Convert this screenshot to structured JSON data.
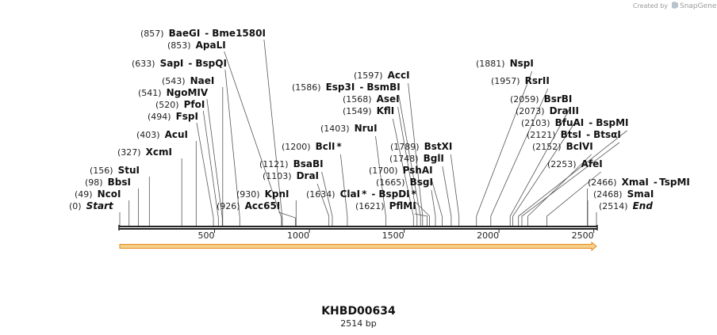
{
  "credit": {
    "prefix": "Created by",
    "brand": "SnapGene"
  },
  "sequence": {
    "name": "KHBD00634",
    "length_label": "2514 bp",
    "length": 2514
  },
  "colors": {
    "feature_fill": "#f6d08a",
    "feature_stroke": "#e48a1f",
    "backbone": "#222222"
  },
  "ticks": [
    {
      "value": 500,
      "label": "500"
    },
    {
      "value": 1000,
      "label": "1000"
    },
    {
      "value": 1500,
      "label": "1500"
    },
    {
      "value": 2000,
      "label": "2000"
    },
    {
      "value": 2500,
      "label": "2500"
    }
  ],
  "sites": [
    {
      "pos": 857,
      "pos_label": "(857)",
      "name": "BaeGI",
      "name2": "Bme1580I"
    },
    {
      "pos": 853,
      "pos_label": "(853)",
      "name": "ApaLI"
    },
    {
      "pos": 633,
      "pos_label": "(633)",
      "name": "SapI",
      "name2": "BspQI"
    },
    {
      "pos": 543,
      "pos_label": "(543)",
      "name": "NaeI"
    },
    {
      "pos": 541,
      "pos_label": "(541)",
      "name": "NgoMIV"
    },
    {
      "pos": 520,
      "pos_label": "(520)",
      "name": "PfoI"
    },
    {
      "pos": 494,
      "pos_label": "(494)",
      "name": "FspI"
    },
    {
      "pos": 403,
      "pos_label": "(403)",
      "name": "AcuI"
    },
    {
      "pos": 327,
      "pos_label": "(327)",
      "name": "XcmI"
    },
    {
      "pos": 156,
      "pos_label": "(156)",
      "name": "StuI"
    },
    {
      "pos": 98,
      "pos_label": "(98)",
      "name": "BbsI"
    },
    {
      "pos": 49,
      "pos_label": "(49)",
      "name": "NcoI"
    },
    {
      "pos": 0,
      "pos_label": "(0)",
      "name": "Start",
      "italic": true
    },
    {
      "pos": 930,
      "pos_label": "(930)",
      "name": "KpnI"
    },
    {
      "pos": 926,
      "pos_label": "(926)",
      "name": "Acc65I"
    },
    {
      "pos": 1200,
      "pos_label": "(1200)",
      "name": "BclI",
      "mark": "*"
    },
    {
      "pos": 1121,
      "pos_label": "(1121)",
      "name": "BsaBI"
    },
    {
      "pos": 1103,
      "pos_label": "(1103)",
      "name": "DraI"
    },
    {
      "pos": 1634,
      "pos_label": "(1634)",
      "name": "ClaI",
      "mark": "*",
      "name2": "BspDI",
      "mark2": "*"
    },
    {
      "pos": 1597,
      "pos_label": "(1597)",
      "name": "AccI"
    },
    {
      "pos": 1586,
      "pos_label": "(1586)",
      "name": "Esp3I",
      "name2": "BsmBI"
    },
    {
      "pos": 1568,
      "pos_label": "(1568)",
      "name": "AseI"
    },
    {
      "pos": 1549,
      "pos_label": "(1549)",
      "name": "KflI"
    },
    {
      "pos": 1403,
      "pos_label": "(1403)",
      "name": "NruI"
    },
    {
      "pos": 1789,
      "pos_label": "(1789)",
      "name": "BstXI"
    },
    {
      "pos": 1748,
      "pos_label": "(1748)",
      "name": "BglI"
    },
    {
      "pos": 1700,
      "pos_label": "(1700)",
      "name": "PshAI"
    },
    {
      "pos": 1665,
      "pos_label": "(1665)",
      "name": "BsgI"
    },
    {
      "pos": 1621,
      "pos_label": "(1621)",
      "name": "PflMI"
    },
    {
      "pos": 1881,
      "pos_label": "(1881)",
      "name": "NspI"
    },
    {
      "pos": 1957,
      "pos_label": "(1957)",
      "name": "RsrII"
    },
    {
      "pos": 2059,
      "pos_label": "(2059)",
      "name": "BsrBI"
    },
    {
      "pos": 2073,
      "pos_label": "(2073)",
      "name": "DraIII"
    },
    {
      "pos": 2103,
      "pos_label": "(2103)",
      "name": "BfuAI",
      "name2": "BspMI"
    },
    {
      "pos": 2121,
      "pos_label": "(2121)",
      "name": "BtsI",
      "name2": "BtsαI"
    },
    {
      "pos": 2152,
      "pos_label": "(2152)",
      "name": "BclVI"
    },
    {
      "pos": 2253,
      "pos_label": "(2253)",
      "name": "AfeI"
    },
    {
      "pos": 2466,
      "pos_label": "(2466)",
      "name": "XmaI",
      "name2": "TspMI"
    },
    {
      "pos": 2468,
      "pos_label": "(2468)",
      "name": "SmaI"
    },
    {
      "pos": 2514,
      "pos_label": "(2514)",
      "name": "End",
      "italic": true
    }
  ]
}
